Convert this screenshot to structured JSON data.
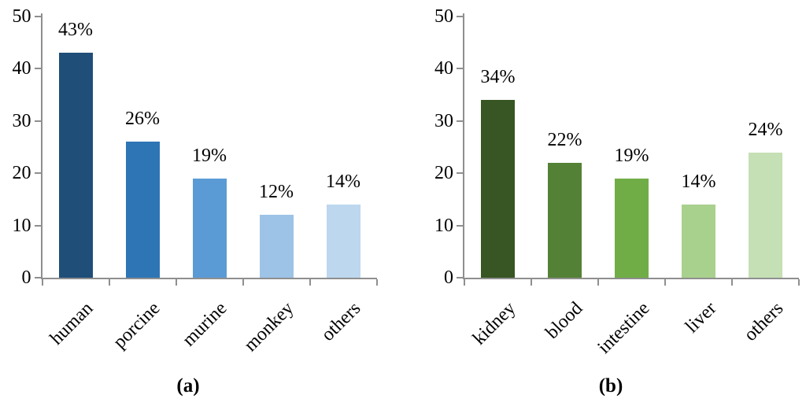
{
  "figure": {
    "background": "#ffffff",
    "axis_color": "#8f8f8f",
    "text_color": "#000000",
    "description": "Two vertical bar charts side by side, panel (a) blue bars, panel (b) green bars"
  },
  "chart_data": [
    {
      "type": "bar",
      "panel_caption": "(a)",
      "title": "",
      "xlabel": "",
      "ylabel": "",
      "ylim": [
        0,
        50
      ],
      "yticks": [
        0,
        10,
        20,
        30,
        40,
        50
      ],
      "grid": false,
      "legend": false,
      "categories": [
        "human",
        "porcine",
        "murine",
        "monkey",
        "others"
      ],
      "values": [
        43,
        26,
        19,
        12,
        14
      ],
      "data_labels": [
        "43%",
        "26%",
        "19%",
        "12%",
        "14%"
      ],
      "bar_colors": [
        "#1f4e79",
        "#2e75b6",
        "#5b9bd5",
        "#9dc3e6",
        "#bdd7ee"
      ]
    },
    {
      "type": "bar",
      "panel_caption": "(b)",
      "title": "",
      "xlabel": "",
      "ylabel": "",
      "ylim": [
        0,
        50
      ],
      "yticks": [
        0,
        10,
        20,
        30,
        40,
        50
      ],
      "grid": false,
      "legend": false,
      "categories": [
        "kidney",
        "blood",
        "intestine",
        "liver",
        "others"
      ],
      "values": [
        34,
        22,
        19,
        14,
        24
      ],
      "data_labels": [
        "34%",
        "22%",
        "19%",
        "14%",
        "24%"
      ],
      "bar_colors": [
        "#375623",
        "#538135",
        "#70ad47",
        "#a9d18e",
        "#c5e0b4"
      ]
    }
  ]
}
